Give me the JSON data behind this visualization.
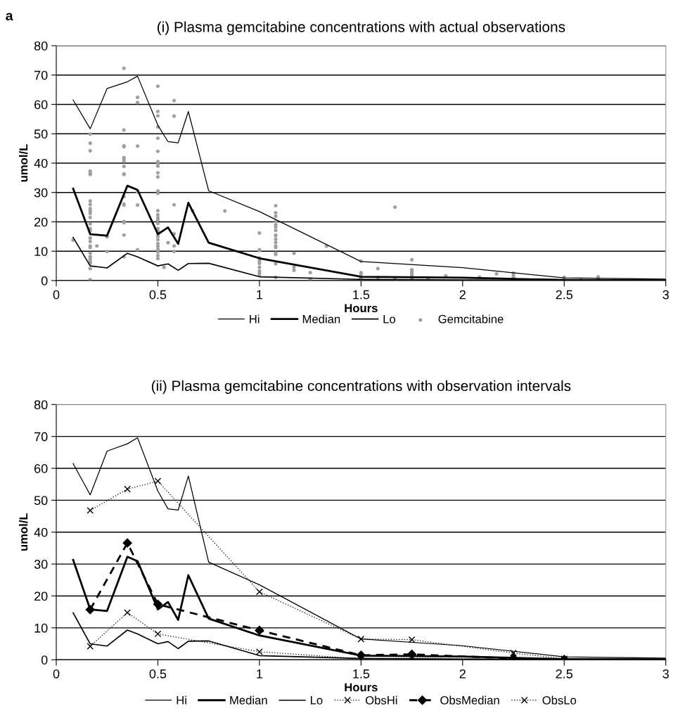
{
  "chart_data": [
    {
      "type": "line",
      "title": "(i) Plasma gemcitabine concentrations with actual observations",
      "xlabel": "Hours",
      "ylabel": "umol/L",
      "xlim": [
        0,
        3
      ],
      "xticks": [
        0,
        0.5,
        1,
        1.5,
        2,
        2.5,
        3
      ],
      "ylim": [
        0,
        80
      ],
      "yticks": [
        0,
        10,
        20,
        30,
        40,
        50,
        60,
        70,
        80
      ],
      "grid": "y",
      "legend": "bottom",
      "annotations": [
        "a"
      ],
      "series": [
        {
          "name": "Hi",
          "color": "#000000",
          "line_style": "solid",
          "marker": "none",
          "x": [
            0.083,
            0.167,
            0.25,
            0.35,
            0.4,
            0.5,
            0.55,
            0.6,
            0.65,
            0.75,
            1,
            1.5,
            2,
            2.5,
            3
          ],
          "values": [
            61.5,
            51.7,
            65.4,
            67.7,
            69.6,
            52.9,
            47.3,
            46.9,
            57.6,
            30.6,
            23.5,
            6.5,
            4.4,
            0.9,
            0.5
          ]
        },
        {
          "name": "Median",
          "color": "#000000",
          "line_style": "solid",
          "marker": "none",
          "x": [
            0.083,
            0.167,
            0.25,
            0.35,
            0.4,
            0.5,
            0.55,
            0.6,
            0.65,
            0.75,
            1,
            1.5,
            2,
            2.5,
            3
          ],
          "values": [
            31.3,
            15.8,
            15.3,
            32.3,
            30.9,
            15.8,
            18.1,
            12.5,
            26.5,
            12.9,
            7.6,
            1.3,
            1.0,
            0.2,
            0.1
          ]
        },
        {
          "name": "Lo",
          "color": "#000000",
          "line_style": "solid",
          "marker": "none",
          "x": [
            0.083,
            0.167,
            0.25,
            0.35,
            0.4,
            0.5,
            0.55,
            0.6,
            0.65,
            0.75,
            1,
            1.5,
            2,
            2.5,
            3
          ],
          "values": [
            14.7,
            5.0,
            4.3,
            9.3,
            8.1,
            5.0,
            5.7,
            3.5,
            5.8,
            5.9,
            1.3,
            0.4,
            0.2,
            0.1,
            0.1
          ]
        },
        {
          "name": "Gemcitabine",
          "type": "scatter",
          "color": "#a0a0a0",
          "marker": "circle",
          "x": [
            0.083,
            0.167,
            0.167,
            0.167,
            0.167,
            0.167,
            0.167,
            0.167,
            0.167,
            0.167,
            0.167,
            0.167,
            0.167,
            0.167,
            0.167,
            0.167,
            0.167,
            0.167,
            0.167,
            0.167,
            0.167,
            0.167,
            0.167,
            0.167,
            0.167,
            0.167,
            0.167,
            0.2,
            0.25,
            0.25,
            0.333,
            0.333,
            0.333,
            0.333,
            0.333,
            0.333,
            0.333,
            0.333,
            0.333,
            0.333,
            0.333,
            0.333,
            0.333,
            0.333,
            0.333,
            0.333,
            0.333,
            0.4,
            0.4,
            0.4,
            0.4,
            0.4,
            0.4,
            0.5,
            0.5,
            0.5,
            0.5,
            0.5,
            0.5,
            0.5,
            0.5,
            0.5,
            0.5,
            0.5,
            0.5,
            0.5,
            0.5,
            0.5,
            0.5,
            0.5,
            0.5,
            0.5,
            0.5,
            0.5,
            0.5,
            0.5,
            0.5,
            0.5,
            0.5,
            0.5,
            0.5,
            0.5,
            0.53,
            0.55,
            0.58,
            0.58,
            0.58,
            0.58,
            0.58,
            0.58,
            0.67,
            0.83,
            1,
            1,
            1,
            1,
            1,
            1,
            1,
            1,
            1,
            1,
            1,
            1.08,
            1.08,
            1.08,
            1.08,
            1.08,
            1.08,
            1.08,
            1.08,
            1.08,
            1.08,
            1.08,
            1.08,
            1.08,
            1.08,
            1.08,
            1.08,
            1.08,
            1.17,
            1.17,
            1.17,
            1.25,
            1.25,
            1.33,
            1.5,
            1.5,
            1.5,
            1.5,
            1.5,
            1.583,
            1.583,
            1.667,
            1.667,
            1.75,
            1.75,
            1.75,
            1.75,
            1.75,
            1.75,
            1.75,
            1.83,
            1.917,
            2.083,
            2.167,
            2.25,
            2.25,
            2.25,
            2.5,
            2.5,
            2.583,
            2.667,
            2.667,
            2.75
          ],
          "values": [
            13.8,
            49.9,
            46.8,
            44.2,
            37.3,
            36.5,
            36.1,
            27.1,
            25.9,
            24.5,
            23.7,
            22.9,
            21.5,
            19.3,
            17.7,
            16.9,
            14.5,
            13.3,
            11.8,
            11.3,
            9.3,
            8.1,
            7.3,
            6.5,
            5.9,
            4.1,
            0.3,
            11.8,
            14.9,
            9.9,
            72.3,
            51.3,
            45.9,
            45.6,
            41.9,
            41.3,
            40.7,
            38.9,
            36.3,
            36.1,
            28.6,
            26.1,
            25.7,
            20.1,
            19.7,
            15.5,
            8.1,
            62.4,
            60.6,
            45.8,
            30.2,
            25.7,
            10.5,
            66.2,
            57.6,
            56.1,
            52.3,
            48.5,
            44.0,
            40.5,
            39.8,
            39.0,
            36.7,
            35.3,
            30.5,
            29.7,
            23.8,
            22.4,
            21.4,
            20.6,
            19.5,
            17.7,
            16.9,
            16.0,
            15.0,
            13.9,
            12.6,
            11.7,
            10.7,
            9.7,
            8.5,
            7.5,
            4.5,
            12.9,
            61.3,
            56.0,
            25.8,
            15.9,
            11.8,
            9.9,
            23.8,
            23.7,
            16.2,
            10.5,
            10.2,
            7.7,
            7.0,
            6.4,
            5.8,
            4.5,
            3.3,
            2.5,
            1.9,
            25.5,
            23.1,
            21.9,
            20.3,
            19.0,
            18.2,
            17.1,
            15.5,
            15.3,
            14.1,
            13.0,
            11.8,
            11.3,
            9.4,
            8.9,
            5.7,
            1.1,
            9.3,
            4.6,
            3.5,
            2.7,
            0.5,
            11.7,
            6.6,
            2.7,
            2.1,
            1.3,
            0.5,
            4.1,
            1.0,
            25.0,
            0.6,
            7.1,
            3.7,
            3.0,
            2.5,
            1.9,
            1.3,
            0.5,
            0.7,
            1.6,
            1.2,
            2.3,
            2.5,
            1.7,
            1.0,
            1.1,
            0.3,
            0.2,
            1.3,
            0.5,
            0.1
          ]
        }
      ]
    },
    {
      "type": "line",
      "title": "(ii) Plasma gemcitabine concentrations with observation intervals",
      "xlabel": "Hours",
      "ylabel": "umol/L",
      "xlim": [
        0,
        3
      ],
      "xticks": [
        0,
        0.5,
        1,
        1.5,
        2,
        2.5,
        3
      ],
      "ylim": [
        0,
        80
      ],
      "yticks": [
        0,
        10,
        20,
        30,
        40,
        50,
        60,
        70,
        80
      ],
      "grid": "y",
      "legend": "bottom",
      "series": [
        {
          "name": "Hi",
          "color": "#000000",
          "line_style": "solid",
          "marker": "none",
          "x": [
            0.083,
            0.167,
            0.25,
            0.35,
            0.4,
            0.5,
            0.55,
            0.6,
            0.65,
            0.75,
            1,
            1.5,
            2,
            2.5,
            3
          ],
          "values": [
            61.5,
            51.7,
            65.4,
            67.7,
            69.6,
            52.9,
            47.3,
            46.9,
            57.6,
            30.6,
            23.5,
            6.5,
            4.4,
            0.9,
            0.5
          ]
        },
        {
          "name": "Median",
          "color": "#000000",
          "line_style": "solid",
          "marker": "none",
          "x": [
            0.083,
            0.167,
            0.25,
            0.35,
            0.4,
            0.5,
            0.55,
            0.6,
            0.65,
            0.75,
            1,
            1.5,
            2,
            2.5,
            3
          ],
          "values": [
            31.3,
            15.8,
            15.3,
            32.3,
            30.9,
            15.8,
            18.1,
            12.5,
            26.5,
            12.9,
            7.6,
            1.3,
            1.0,
            0.2,
            0.1
          ]
        },
        {
          "name": "Lo",
          "color": "#000000",
          "line_style": "solid",
          "marker": "none",
          "x": [
            0.083,
            0.167,
            0.25,
            0.35,
            0.4,
            0.5,
            0.55,
            0.6,
            0.65,
            0.75,
            1,
            1.5,
            2,
            2.5,
            3
          ],
          "values": [
            14.7,
            5.0,
            4.3,
            9.3,
            8.1,
            5.0,
            5.7,
            3.5,
            5.8,
            5.9,
            1.3,
            0.4,
            0.2,
            0.1,
            0.1
          ]
        },
        {
          "name": "ObsHi",
          "color": "#000000",
          "line_style": "dotted",
          "marker": "cross",
          "x": [
            0.167,
            0.35,
            0.5,
            1,
            1.5,
            1.75,
            2.25,
            2.5
          ],
          "values": [
            46.8,
            53.5,
            56.0,
            21.3,
            6.5,
            6.3,
            2.1,
            0.3
          ]
        },
        {
          "name": "ObsMedian",
          "color": "#000000",
          "line_style": "dashed",
          "marker": "diamond",
          "x": [
            0.167,
            0.35,
            0.5,
            1,
            1.5,
            1.75,
            2.25,
            2.5
          ],
          "values": [
            15.7,
            36.6,
            17.4,
            9.2,
            1.4,
            1.7,
            0.4,
            0.1
          ]
        },
        {
          "name": "ObsLo",
          "color": "#000000",
          "line_style": "dotted",
          "marker": "cross",
          "x": [
            0.167,
            0.35,
            0.5,
            1,
            1.5,
            1.75,
            2.25,
            2.5
          ],
          "values": [
            4.2,
            14.8,
            8.1,
            2.5,
            0.3,
            0.5,
            0.1,
            0.0
          ]
        }
      ]
    }
  ]
}
